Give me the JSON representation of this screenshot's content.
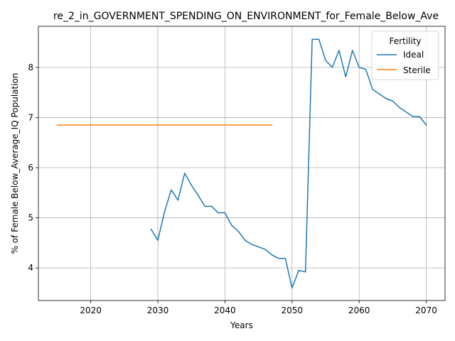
{
  "chart_data": {
    "type": "line",
    "title": "re_2_in_GOVERNMENT_SPENDING_ON_ENVIRONMENT_for_Female_Below_Ave",
    "xlabel": "Years",
    "ylabel": "% of Female Below_Average_IQ Population",
    "xlim": [
      2012.2,
      2072.8
    ],
    "ylim": [
      3.35,
      8.82
    ],
    "xticks": [
      2020,
      2030,
      2040,
      2050,
      2060,
      2070
    ],
    "yticks": [
      4,
      5,
      6,
      7,
      8
    ],
    "grid": true,
    "legend": {
      "title": "Fertility",
      "position": "top-right"
    },
    "series": [
      {
        "name": "Ideal",
        "color": "#1f77b4",
        "x": [
          2029,
          2030,
          2031,
          2032,
          2033,
          2034,
          2035,
          2036,
          2037,
          2038,
          2039,
          2040,
          2041,
          2042,
          2043,
          2044,
          2045,
          2046,
          2047,
          2048,
          2049,
          2050,
          2051,
          2052,
          2053,
          2054,
          2055,
          2056,
          2057,
          2058,
          2059,
          2060,
          2061,
          2062,
          2063,
          2064,
          2065,
          2066,
          2067,
          2068,
          2069,
          2070
        ],
        "y": [
          4.77,
          4.55,
          5.12,
          5.56,
          5.35,
          5.89,
          5.65,
          5.45,
          5.23,
          5.23,
          5.1,
          5.1,
          4.85,
          4.73,
          4.55,
          4.47,
          4.42,
          4.37,
          4.26,
          4.19,
          4.19,
          3.6,
          3.95,
          3.92,
          8.56,
          8.56,
          8.14,
          8.0,
          8.34,
          7.81,
          8.34,
          8.0,
          7.96,
          7.56,
          7.47,
          7.38,
          7.33,
          7.2,
          7.11,
          7.02,
          7.02,
          6.85
        ]
      },
      {
        "name": "Sterile",
        "color": "#ff7f0e",
        "x": [
          2015,
          2047
        ],
        "y": [
          6.85,
          6.85
        ]
      }
    ]
  }
}
